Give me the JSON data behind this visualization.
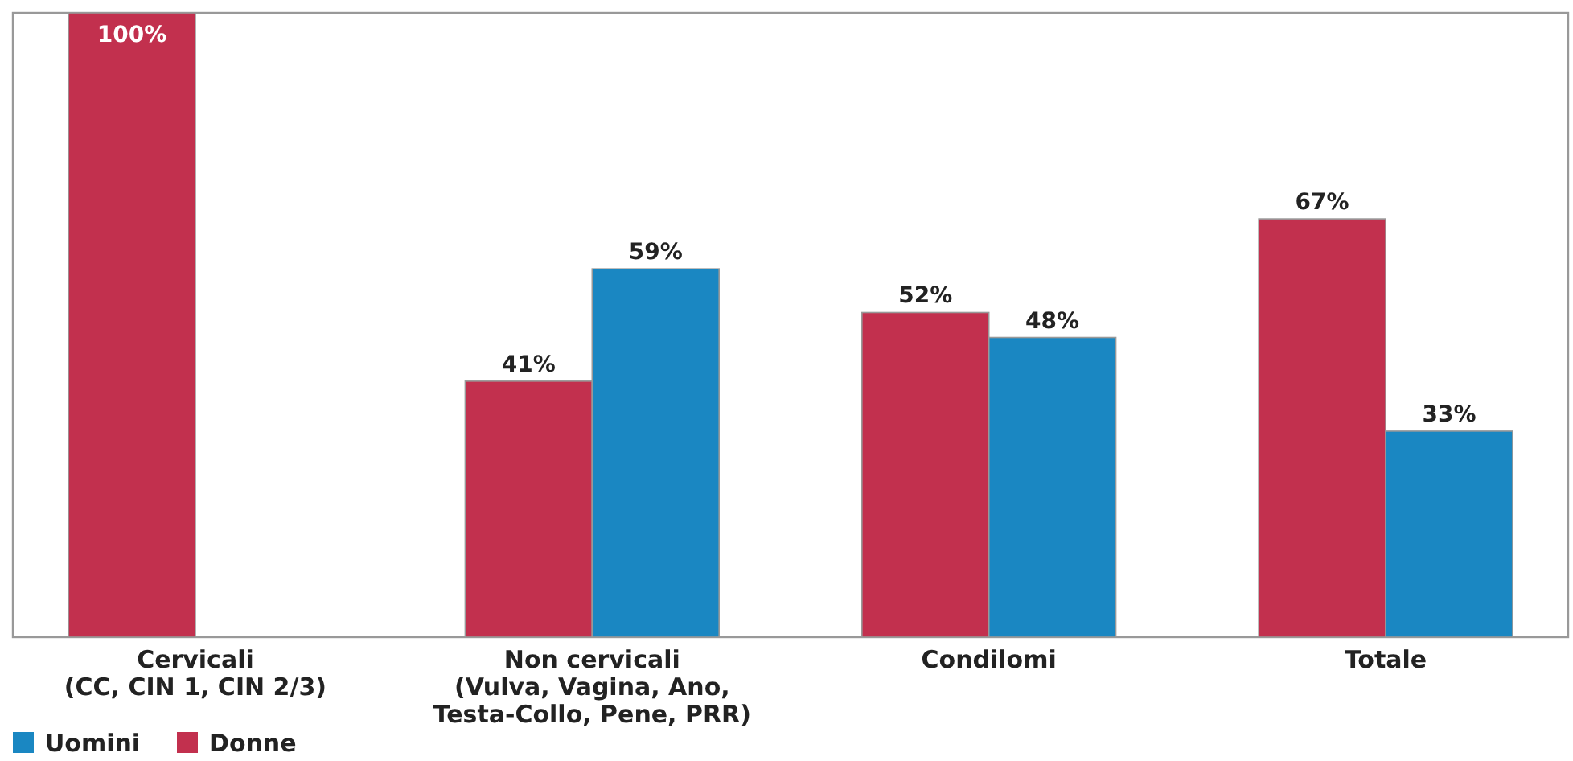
{
  "chart_data": {
    "type": "bar",
    "categories": [
      "Cervicali\n(CC, CIN 1, CIN 2/3)",
      "Non cervicali\n(Vulva, Vagina, Ano,\nTesta-Collo, Pene, PRR)",
      "Condilomi",
      "Totale"
    ],
    "series": [
      {
        "name": "Donne",
        "color": "#c2304e",
        "values": [
          100,
          41,
          52,
          67
        ],
        "value_labels": [
          "100%",
          "41%",
          "52%",
          "67%"
        ]
      },
      {
        "name": "Uomini",
        "color": "#1a87c2",
        "values": [
          null,
          59,
          48,
          33
        ],
        "value_labels": [
          null,
          "59%",
          "48%",
          "33%"
        ]
      }
    ],
    "ylim": [
      0,
      100
    ],
    "tick_labels": "x",
    "grid": false,
    "legend": "bottom left"
  }
}
